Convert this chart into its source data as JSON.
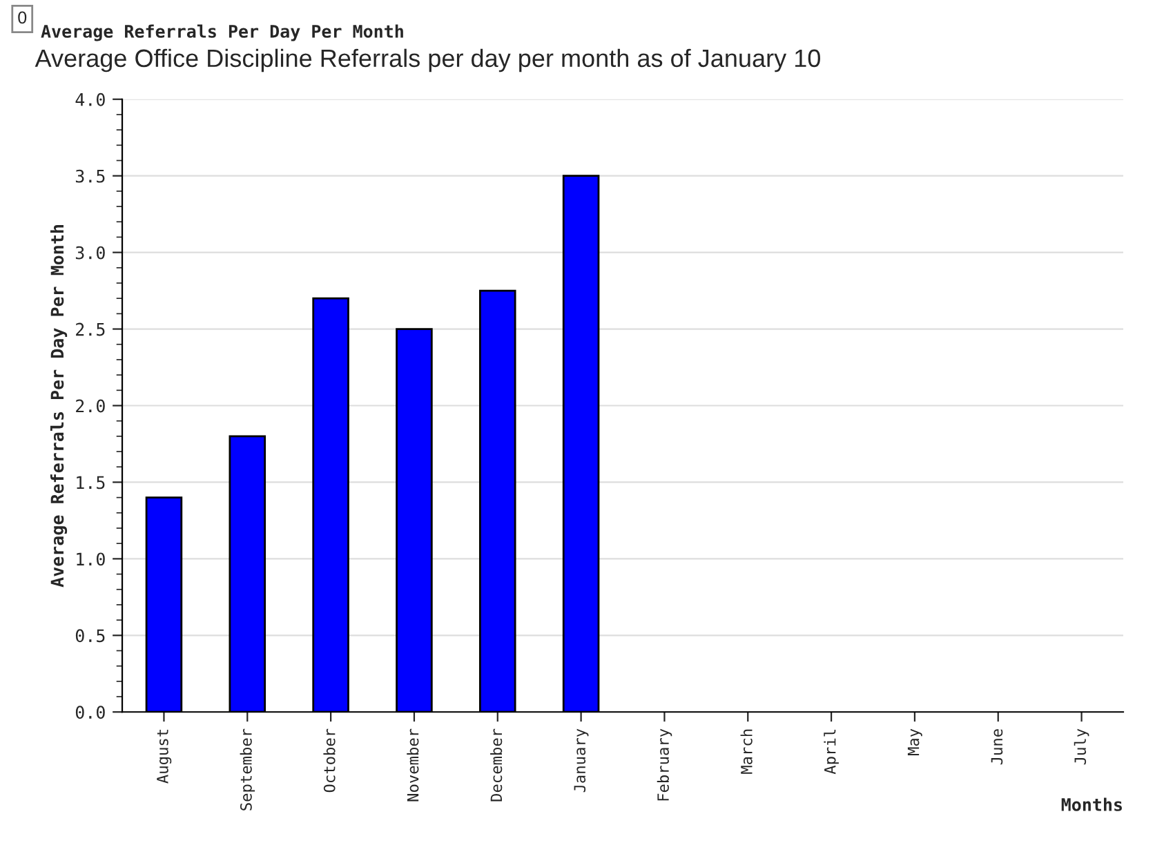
{
  "chart_data": {
    "type": "bar",
    "title": "Average Office Discipline Referrals per day per month as of January 10",
    "annotations": [
      "0",
      "Average Referrals Per Day Per Month"
    ],
    "xlabel": "Months",
    "ylabel": "Average Referrals Per Day Per Month",
    "categories": [
      "August",
      "September",
      "October",
      "November",
      "December",
      "January",
      "February",
      "March",
      "April",
      "May",
      "June",
      "July"
    ],
    "values": [
      1.4,
      1.8,
      2.7,
      2.5,
      2.75,
      3.5,
      null,
      null,
      null,
      null,
      null,
      null
    ],
    "color": "#0000ff",
    "ylim": [
      0,
      4
    ],
    "yticks": [
      {
        "value": 0,
        "label": "0.0"
      },
      {
        "value": 0.5,
        "label": "0.5"
      },
      {
        "value": 1,
        "label": "1.0"
      },
      {
        "value": 1.5,
        "label": "1.5"
      },
      {
        "value": 2,
        "label": "2.0"
      },
      {
        "value": 2.5,
        "label": "2.5"
      },
      {
        "value": 3,
        "label": "3.0"
      },
      {
        "value": 3.5,
        "label": "3.5"
      },
      {
        "value": 4,
        "label": "4.0"
      }
    ],
    "grid": "y"
  }
}
